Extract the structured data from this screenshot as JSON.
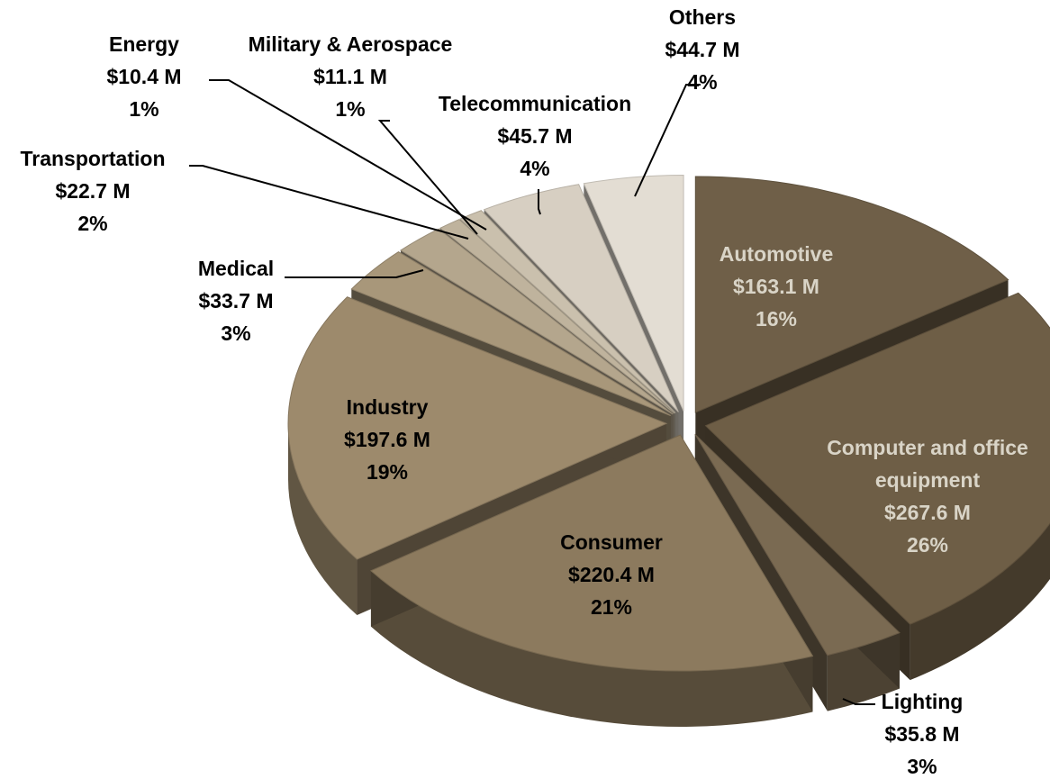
{
  "chart_data": {
    "type": "pie",
    "style": "exploded-3d",
    "unit_prefix": "$",
    "unit_suffix": " M",
    "slices": [
      {
        "label": "Automotive",
        "value": 163.1,
        "value_text": "$163.1 M",
        "percent": "16%",
        "color": "#6f5f48",
        "label_color": "#d9d4c7",
        "label_lines": [
          "Automotive"
        ]
      },
      {
        "label": "Computer and office equipment",
        "value": 267.6,
        "value_text": "$267.6 M",
        "percent": "26%",
        "color": "#6e5e46",
        "label_color": "#d9d4c7",
        "label_lines": [
          "Computer and office",
          "equipment"
        ]
      },
      {
        "label": "Lighting",
        "value": 35.8,
        "value_text": "$35.8 M",
        "percent": "3%",
        "color": "#7a6a52",
        "label_color": "#000000",
        "label_lines": [
          "Lighting"
        ]
      },
      {
        "label": "Consumer",
        "value": 220.4,
        "value_text": "$220.4 M",
        "percent": "21%",
        "color": "#8c7a5e",
        "label_color": "#000000",
        "label_lines": [
          "Consumer"
        ]
      },
      {
        "label": "Industry",
        "value": 197.6,
        "value_text": "$197.6 M",
        "percent": "19%",
        "color": "#9d8a6c",
        "label_color": "#000000",
        "label_lines": [
          "Industry"
        ]
      },
      {
        "label": "Medical",
        "value": 33.7,
        "value_text": "$33.7 M",
        "percent": "3%",
        "color": "#a8977a",
        "label_color": "#000000",
        "label_lines": [
          "Medical"
        ]
      },
      {
        "label": "Transportation",
        "value": 22.7,
        "value_text": "$22.7 M",
        "percent": "2%",
        "color": "#b4a68d",
        "label_color": "#000000",
        "label_lines": [
          "Transportation"
        ]
      },
      {
        "label": "Energy",
        "value": 10.4,
        "value_text": "$10.4 M",
        "percent": "1%",
        "color": "#bfb39d",
        "label_color": "#000000",
        "label_lines": [
          "Energy"
        ]
      },
      {
        "label": "Military & Aerospace",
        "value": 11.1,
        "value_text": "$11.1 M",
        "percent": "1%",
        "color": "#cac0ad",
        "label_color": "#000000",
        "label_lines": [
          "Military & Aerospace"
        ]
      },
      {
        "label": "Telecommunication",
        "value": 45.7,
        "value_text": "$45.7 M",
        "percent": "4%",
        "color": "#d7cfc2",
        "label_color": "#000000",
        "label_lines": [
          "Telecommunication"
        ]
      },
      {
        "label": "Others",
        "value": 44.7,
        "value_text": "$44.7 M",
        "percent": "4%",
        "color": "#e3ddd3",
        "label_color": "#000000",
        "label_lines": [
          "Others"
        ]
      }
    ],
    "title": "",
    "legend": "none"
  }
}
